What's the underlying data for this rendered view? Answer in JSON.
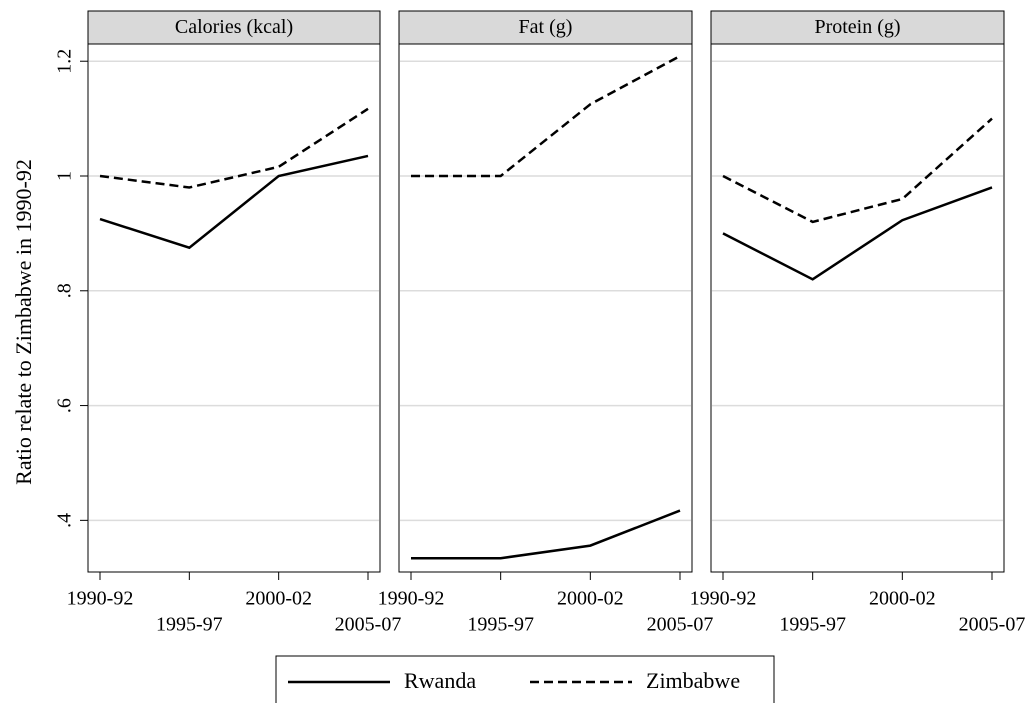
{
  "chart_data": [
    {
      "type": "line",
      "title": "Calories (kcal)",
      "ylabel": "Ratio relate to Zimbabwe in 1990-92",
      "categories": [
        "1990-92",
        "1995-97",
        "2000-02",
        "2005-07"
      ],
      "series": [
        {
          "name": "Rwanda",
          "color": "#000000",
          "linestyle": "solid",
          "values": [
            0.925,
            0.875,
            1.0,
            1.035
          ]
        },
        {
          "name": "Zimbabwe",
          "color": "#000000",
          "linestyle": "dashed",
          "values": [
            1.0,
            0.98,
            1.016,
            1.117
          ]
        }
      ],
      "ylim": [
        0.31,
        1.23
      ],
      "yticks": [
        {
          "value": 0.4,
          "label": ".4"
        },
        {
          "value": 0.6,
          "label": ".6"
        },
        {
          "value": 0.8,
          "label": ".8"
        },
        1,
        1.2
      ],
      "grid": true
    },
    {
      "type": "line",
      "title": "Fat (g)",
      "categories": [
        "1990-92",
        "1995-97",
        "2000-02",
        "2005-07"
      ],
      "series": [
        {
          "name": "Rwanda",
          "color": "#000000",
          "linestyle": "solid",
          "values": [
            0.334,
            0.334,
            0.356,
            0.417
          ]
        },
        {
          "name": "Zimbabwe",
          "color": "#000000",
          "linestyle": "dashed",
          "values": [
            1.0,
            1.0,
            1.125,
            1.209
          ]
        }
      ],
      "ylim": [
        0.31,
        1.23
      ],
      "yticks": [
        {
          "value": 0.4,
          "label": ".4"
        },
        {
          "value": 0.6,
          "label": ".6"
        },
        {
          "value": 0.8,
          "label": ".8"
        },
        1,
        1.2
      ],
      "grid": true
    },
    {
      "type": "line",
      "title": "Protein (g)",
      "categories": [
        "1990-92",
        "1995-97",
        "2000-02",
        "2005-07"
      ],
      "series": [
        {
          "name": "Rwanda",
          "color": "#000000",
          "linestyle": "solid",
          "values": [
            0.9,
            0.82,
            0.923,
            0.98
          ]
        },
        {
          "name": "Zimbabwe",
          "color": "#000000",
          "linestyle": "dashed",
          "values": [
            1.0,
            0.92,
            0.96,
            1.1
          ]
        }
      ],
      "ylim": [
        0.31,
        1.23
      ],
      "yticks": [
        {
          "value": 0.4,
          "label": ".4"
        },
        {
          "value": 0.6,
          "label": ".6"
        },
        {
          "value": 0.8,
          "label": ".8"
        },
        1,
        1.2
      ],
      "grid": true
    }
  ]
}
